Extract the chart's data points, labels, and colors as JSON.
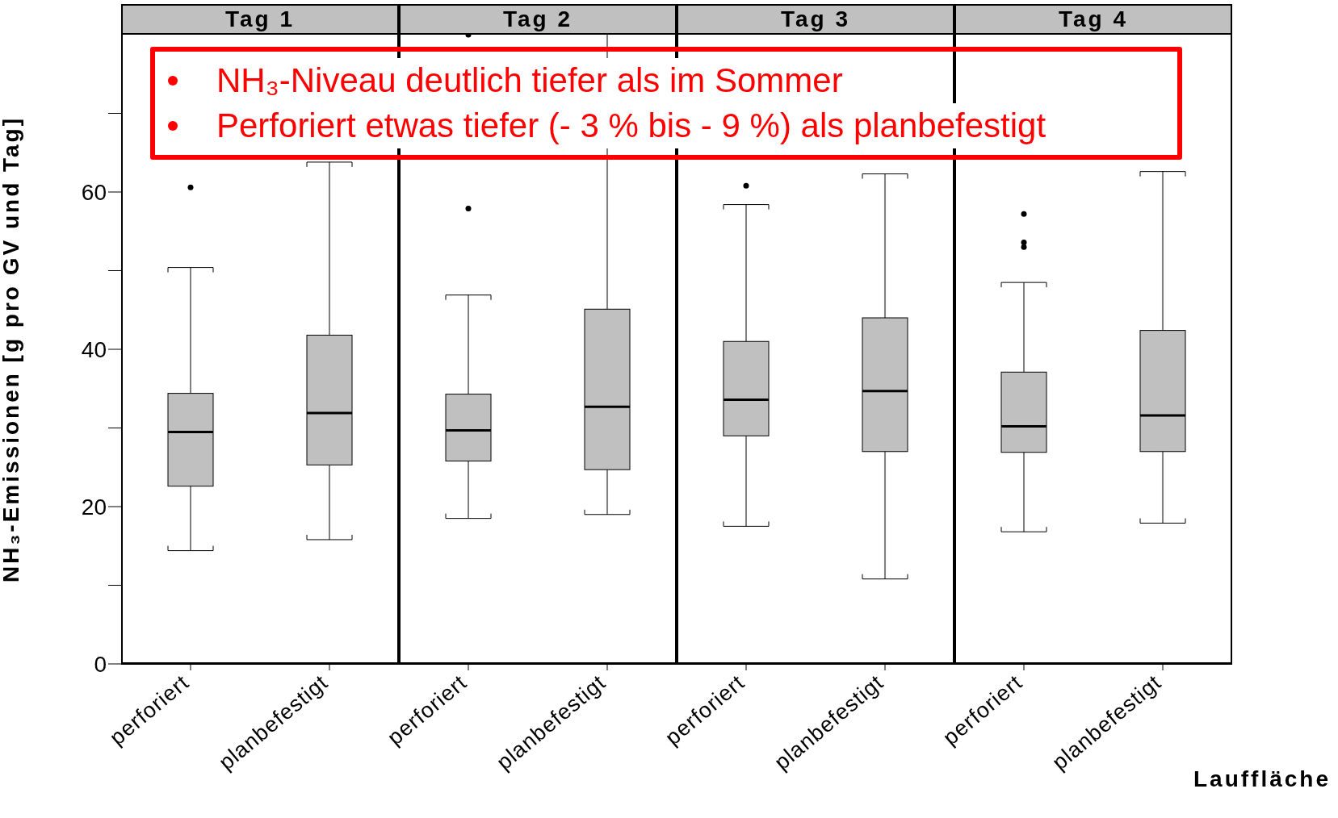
{
  "chart_data": [
    {
      "type": "box",
      "title": "Tag 1",
      "ylabel": "NH₃-Emissionen [g pro GV und Tag]",
      "categories": [
        "perforiert",
        "planbefestigt"
      ],
      "color": "#c0c0c0",
      "marker": "circle",
      "ylim": [
        0,
        80
      ],
      "yticks": [
        0,
        {
          "value": 10,
          "label": null
        },
        20,
        {
          "value": 30,
          "label": null
        },
        40,
        {
          "value": 50,
          "label": null
        },
        60,
        {
          "value": 70,
          "label": null
        }
      ],
      "annotations": [
        "NH₃-Niveau deutlich tiefer als im Sommer",
        "Perforiert etwas tiefer (- 3 % bis - 9 %) als planbefestigt"
      ],
      "boxes": [
        {
          "low": 14.4,
          "q1": 22.6,
          "median": 29.5,
          "q3": 34.4,
          "high": 50.4,
          "outliers": [
            60.6
          ]
        },
        {
          "low": 15.8,
          "q1": 25.3,
          "median": 31.9,
          "q3": 41.8,
          "high": 63.8
        }
      ]
    },
    {
      "type": "box",
      "title": "Tag 2",
      "categories": [
        "perforiert",
        "planbefestigt"
      ],
      "color": "#c0c0c0",
      "marker": "circle",
      "ylim": [
        0,
        80
      ],
      "tick_labels": "x",
      "boxes": [
        {
          "low": 18.5,
          "q1": 25.8,
          "median": 29.7,
          "q3": 34.3,
          "high": 46.9,
          "outliers": [
            57.9,
            80
          ]
        },
        {
          "low": 19.0,
          "q1": 24.7,
          "median": 32.7,
          "q3": 45.1,
          "high": null
        }
      ]
    },
    {
      "type": "box",
      "title": "Tag 3",
      "categories": [
        "perforiert",
        "planbefestigt"
      ],
      "color": "#c0c0c0",
      "marker": "circle",
      "ylim": [
        0,
        80
      ],
      "tick_labels": "x",
      "boxes": [
        {
          "low": 17.5,
          "q1": 29.0,
          "median": 33.6,
          "q3": 41.0,
          "high": 58.4,
          "outliers": [
            60.8
          ]
        },
        {
          "low": 10.8,
          "q1": 27.0,
          "median": 34.7,
          "q3": 44.0,
          "high": 62.3
        }
      ]
    },
    {
      "type": "box",
      "title": "Tag 4",
      "xlabel": "Lauffläche",
      "categories": [
        "perforiert",
        "planbefestigt"
      ],
      "color": "#c0c0c0",
      "marker": "circle",
      "ylim": [
        0,
        80
      ],
      "tick_labels": "x",
      "boxes": [
        {
          "low": 16.8,
          "q1": 26.9,
          "median": 30.2,
          "q3": 37.1,
          "high": 48.5,
          "outliers": [
            57.2,
            53.6,
            53.0
          ]
        },
        {
          "low": 17.9,
          "q1": 27.0,
          "median": 31.6,
          "q3": 42.4,
          "high": 62.6
        }
      ]
    }
  ]
}
